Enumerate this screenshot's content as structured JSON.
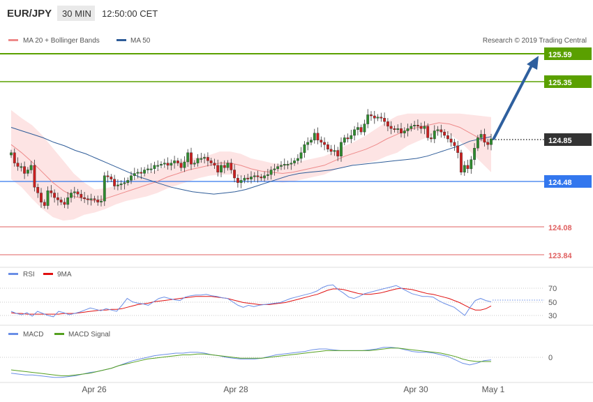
{
  "header": {
    "symbol": "EUR/JPY",
    "interval": "30 MIN",
    "time": "12:50:00 CET"
  },
  "legend": {
    "bollinger_label": "MA 20 + Bollinger Bands",
    "ma50_label": "MA 50",
    "copyright": "Research © 2019 Trading Central"
  },
  "levels": [
    {
      "value": "125.59",
      "kind": "resistance",
      "color": "#5aa000"
    },
    {
      "value": "125.35",
      "kind": "resistance",
      "color": "#5aa000"
    },
    {
      "value": "124.85",
      "kind": "last",
      "color": "#333333"
    },
    {
      "value": "124.48",
      "kind": "pivot",
      "color": "#3377ee"
    },
    {
      "value": "124.08",
      "kind": "support",
      "color": "#e06060"
    },
    {
      "value": "123.84",
      "kind": "support",
      "color": "#e06060"
    }
  ],
  "rsi_panel": {
    "rsi_label": "RSI",
    "ma_label": "9MA",
    "ticks": [
      "70",
      "50",
      "30"
    ]
  },
  "macd_panel": {
    "macd_label": "MACD",
    "signal_label": "MACD Signal",
    "ticks": [
      "0"
    ]
  },
  "dates": [
    "Apr 26",
    "Apr 28",
    "Apr 30",
    "May 1"
  ],
  "colors": {
    "bull": "#2e8b2e",
    "bear": "#cc1f1f",
    "band_fill": "#fde4e4",
    "ma20": "#ee8a8a",
    "ma50": "#2e5c98",
    "rsi": "#6a8ee6",
    "rsi_ma": "#e01010",
    "macd": "#6a8ee6",
    "macd_signal": "#55a020",
    "arrow": "#2e5f9e"
  },
  "chart_data": [
    {
      "type": "candlestick",
      "title": "EUR/JPY",
      "interval": "30 MIN",
      "ylim": [
        123.75,
        125.7
      ],
      "close_series": [
        124.73,
        124.64,
        124.61,
        124.61,
        124.55,
        124.58,
        124.62,
        124.43,
        124.38,
        124.3,
        124.27,
        124.4,
        124.38,
        124.34,
        124.32,
        124.3,
        124.28,
        124.34,
        124.38,
        124.39,
        124.37,
        124.34,
        124.33,
        124.32,
        124.33,
        124.32,
        124.3,
        124.31,
        124.53,
        124.52,
        124.5,
        124.44,
        124.45,
        124.46,
        124.47,
        124.49,
        124.53,
        124.55,
        124.56,
        124.55,
        124.58,
        124.59,
        124.59,
        124.62,
        124.62,
        124.63,
        124.64,
        124.62,
        124.64,
        124.66,
        124.64,
        124.6,
        124.65,
        124.73,
        124.63,
        124.64,
        124.68,
        124.68,
        124.69,
        124.66,
        124.64,
        124.62,
        124.56,
        124.62,
        124.6,
        124.64,
        124.58,
        124.51,
        124.47,
        124.49,
        124.51,
        124.5,
        124.52,
        124.53,
        124.52,
        124.51,
        124.53,
        124.54,
        124.58,
        124.59,
        124.61,
        124.62,
        124.63,
        124.63,
        124.64,
        124.66,
        124.68,
        124.73,
        124.8,
        124.82,
        124.84,
        124.9,
        124.84,
        124.82,
        124.8,
        124.76,
        124.74,
        124.75,
        124.7,
        124.82,
        124.86,
        124.85,
        124.88,
        124.93,
        124.95,
        124.91,
        124.98,
        125.06,
        125.05,
        125.03,
        125.04,
        125.03,
        125.0,
        124.96,
        124.94,
        124.93,
        124.94,
        124.9,
        124.92,
        124.94,
        124.96,
        124.97,
        124.96,
        124.94,
        124.96,
        124.86,
        124.85,
        124.92,
        124.93,
        124.91,
        124.88,
        124.85,
        124.82,
        124.79,
        124.73,
        124.56,
        124.62,
        124.59,
        124.67,
        124.77,
        124.86,
        124.89,
        124.82,
        124.8,
        124.85
      ],
      "ma50": [
        124.95,
        124.92,
        124.89,
        124.86,
        124.82,
        124.79,
        124.75,
        124.72,
        124.68,
        124.64,
        124.6,
        124.56,
        124.52,
        124.49,
        124.46,
        124.43,
        124.41,
        124.39,
        124.38,
        124.37,
        124.38,
        124.39,
        124.41,
        124.44,
        124.47,
        124.5,
        124.53,
        124.55,
        124.56,
        124.57,
        124.58,
        124.6,
        124.62,
        124.63,
        124.64,
        124.65,
        124.66,
        124.67,
        124.68,
        124.7,
        124.73,
        124.76,
        124.79,
        124.83,
        124.85,
        124.87
      ],
      "ma20": [
        124.8,
        124.73,
        124.65,
        124.56,
        124.47,
        124.4,
        124.35,
        124.33,
        124.31,
        124.33,
        124.36,
        124.39,
        124.42,
        124.45,
        124.48,
        124.52,
        124.55,
        124.58,
        124.6,
        124.62,
        124.64,
        124.64,
        124.62,
        124.59,
        124.57,
        124.56,
        124.55,
        124.56,
        124.58,
        124.6,
        124.62,
        124.66,
        124.7,
        124.73,
        124.76,
        124.8,
        124.85,
        124.89,
        124.93,
        124.95,
        124.97,
        124.99,
        124.98,
        124.95,
        124.9,
        124.85,
        124.8
      ]
    },
    {
      "type": "line",
      "title": "RSI",
      "series": [
        {
          "name": "RSI"
        },
        {
          "name": "9MA"
        }
      ],
      "ylim": [
        20,
        85
      ],
      "ticks": [
        70,
        50,
        30
      ],
      "rsi": [
        36,
        33,
        31,
        34,
        29,
        36,
        33,
        30,
        28,
        36,
        34,
        31,
        33,
        35,
        38,
        41,
        39,
        37,
        40,
        38,
        36,
        45,
        55,
        50,
        48,
        47,
        45,
        50,
        55,
        57,
        55,
        53,
        52,
        57,
        59,
        60,
        60,
        61,
        59,
        58,
        56,
        55,
        50,
        45,
        42,
        45,
        43,
        45,
        46,
        47,
        48,
        49,
        52,
        55,
        57,
        59,
        61,
        63,
        66,
        71,
        74,
        75,
        68,
        63,
        57,
        55,
        58,
        62,
        64,
        66,
        68,
        70,
        72,
        74,
        70,
        66,
        62,
        60,
        58,
        58,
        57,
        52,
        48,
        45,
        42,
        36,
        30,
        42,
        52,
        55,
        52,
        50
      ],
      "rsi_ma": [
        34,
        33,
        33,
        32,
        32,
        32,
        32,
        32,
        32,
        32,
        33,
        33,
        33,
        34,
        35,
        36,
        37,
        38,
        38,
        39,
        39,
        40,
        42,
        44,
        46,
        47,
        48,
        50,
        51,
        52,
        53,
        54,
        55,
        56,
        57,
        58,
        58,
        58,
        58,
        57,
        56,
        55,
        53,
        51,
        49,
        48,
        47,
        46,
        46,
        46,
        47,
        48,
        49,
        51,
        53,
        55,
        57,
        59,
        61,
        64,
        67,
        69,
        69,
        68,
        66,
        64,
        62,
        61,
        61,
        62,
        63,
        65,
        67,
        69,
        70,
        69,
        68,
        66,
        64,
        62,
        61,
        59,
        57,
        55,
        52,
        49,
        45,
        41,
        38,
        38,
        40,
        44
      ]
    },
    {
      "type": "line",
      "title": "MACD",
      "series": [
        {
          "name": "MACD"
        },
        {
          "name": "MACD Signal"
        }
      ],
      "ticks": [
        0
      ],
      "macd": [
        -0.19,
        -0.2,
        -0.21,
        -0.21,
        -0.22,
        -0.23,
        -0.24,
        -0.24,
        -0.23,
        -0.22,
        -0.2,
        -0.18,
        -0.17,
        -0.15,
        -0.13,
        -0.1,
        -0.07,
        -0.04,
        -0.02,
        0.0,
        0.02,
        0.03,
        0.04,
        0.05,
        0.05,
        0.06,
        0.06,
        0.05,
        0.03,
        0.02,
        0.0,
        -0.01,
        -0.02,
        -0.02,
        -0.02,
        -0.01,
        0.01,
        0.03,
        0.04,
        0.05,
        0.06,
        0.07,
        0.09,
        0.1,
        0.1,
        0.09,
        0.08,
        0.08,
        0.08,
        0.08,
        0.09,
        0.1,
        0.12,
        0.12,
        0.11,
        0.09,
        0.07,
        0.06,
        0.06,
        0.05,
        0.03,
        0.01,
        -0.03,
        -0.07,
        -0.09,
        -0.07,
        -0.04,
        -0.03
      ],
      "signal": [
        -0.15,
        -0.16,
        -0.17,
        -0.18,
        -0.19,
        -0.2,
        -0.21,
        -0.22,
        -0.22,
        -0.21,
        -0.2,
        -0.19,
        -0.17,
        -0.15,
        -0.13,
        -0.1,
        -0.08,
        -0.06,
        -0.04,
        -0.02,
        -0.01,
        0.0,
        0.01,
        0.02,
        0.03,
        0.03,
        0.04,
        0.04,
        0.03,
        0.02,
        0.01,
        0.0,
        -0.01,
        -0.01,
        -0.01,
        -0.01,
        0.0,
        0.01,
        0.02,
        0.03,
        0.04,
        0.05,
        0.06,
        0.07,
        0.08,
        0.08,
        0.08,
        0.08,
        0.08,
        0.08,
        0.08,
        0.09,
        0.1,
        0.11,
        0.11,
        0.1,
        0.09,
        0.08,
        0.07,
        0.06,
        0.05,
        0.03,
        0.01,
        -0.02,
        -0.04,
        -0.05,
        -0.05,
        -0.05
      ]
    }
  ]
}
